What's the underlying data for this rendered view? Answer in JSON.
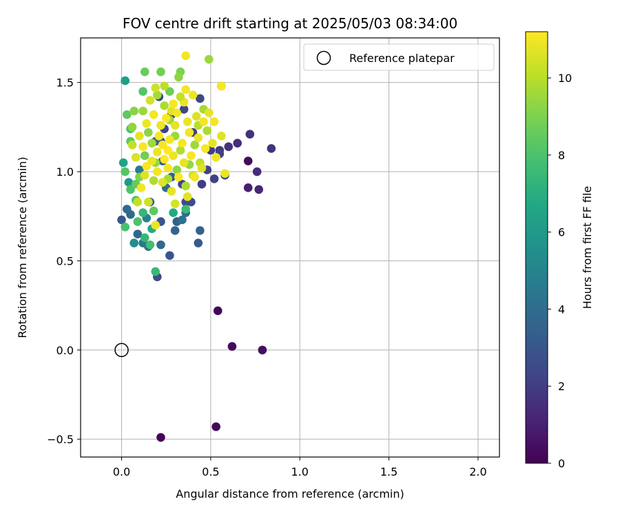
{
  "chart_data": {
    "type": "scatter",
    "title": "FOV centre drift starting at 2025/05/03 08:34:00",
    "xlabel": "Angular distance from reference (arcmin)",
    "ylabel": "Rotation from reference (arcmin)",
    "xlim": [
      -0.23,
      2.12
    ],
    "ylim": [
      -0.6,
      1.75
    ],
    "xticks": [
      0.0,
      0.5,
      1.0,
      1.5,
      2.0
    ],
    "xtick_labels": [
      "0.0",
      "0.5",
      "1.0",
      "1.5",
      "2.0"
    ],
    "yticks": [
      -0.5,
      0.0,
      0.5,
      1.0,
      1.5
    ],
    "ytick_labels": [
      "−0.5",
      "0.0",
      "0.5",
      "1.0",
      "1.5"
    ],
    "grid": true,
    "legend": {
      "position": "top-right",
      "entries": [
        "Reference platepar"
      ]
    },
    "reference_point": {
      "x": 0.0,
      "y": 0.0,
      "label": "Reference platepar"
    },
    "colorbar": {
      "label": "Hours from first FF file",
      "colormap": "viridis",
      "range": [
        0,
        11.2
      ],
      "ticks": [
        0,
        2,
        4,
        6,
        8,
        10
      ],
      "tick_labels": [
        "0",
        "2",
        "4",
        "6",
        "8",
        "10"
      ]
    },
    "series": [
      {
        "points": [
          [
            0.22,
            -0.49,
            0.1
          ],
          [
            0.53,
            -0.43,
            0.2
          ],
          [
            0.62,
            0.02,
            0.3
          ],
          [
            0.79,
            0.0,
            0.4
          ],
          [
            0.54,
            0.22,
            0.2
          ],
          [
            0.71,
            1.06,
            0.3
          ],
          [
            0.71,
            0.91,
            1.0
          ],
          [
            0.77,
            0.9,
            1.2
          ],
          [
            0.76,
            1.0,
            1.4
          ],
          [
            0.72,
            1.21,
            1.5
          ],
          [
            0.84,
            1.13,
            1.6
          ],
          [
            0.65,
            1.16,
            1.4
          ],
          [
            0.6,
            1.14,
            1.6
          ],
          [
            0.55,
            1.12,
            1.9
          ],
          [
            0.56,
            1.48,
            1.8
          ],
          [
            0.45,
            0.93,
            2.0
          ],
          [
            0.52,
            0.96,
            2.1
          ],
          [
            0.48,
            1.01,
            2.2
          ],
          [
            0.58,
            0.98,
            2.3
          ],
          [
            0.55,
            1.1,
            2.1
          ],
          [
            0.44,
            1.41,
            2.4
          ],
          [
            0.4,
            1.22,
            2.2
          ],
          [
            0.5,
            1.12,
            2.0
          ],
          [
            0.35,
            1.35,
            2.4
          ],
          [
            0.28,
            1.32,
            1.9
          ],
          [
            0.36,
            0.83,
            2.5
          ],
          [
            0.39,
            0.83,
            2.6
          ],
          [
            0.34,
            0.93,
            2.4
          ],
          [
            0.2,
            0.41,
            2.6
          ],
          [
            0.27,
            0.53,
            3.0
          ],
          [
            0.43,
            0.6,
            3.2
          ],
          [
            0.44,
            0.67,
            3.5
          ],
          [
            0.22,
            0.59,
            3.8
          ],
          [
            0.3,
            0.67,
            3.6
          ],
          [
            0.36,
            0.77,
            4.0
          ],
          [
            0.31,
            0.72,
            3.4
          ],
          [
            0.24,
            1.24,
            2.2
          ],
          [
            0.22,
            1.17,
            2.9
          ],
          [
            0.22,
            0.72,
            3.0
          ],
          [
            0.21,
            1.42,
            2.6
          ],
          [
            0.15,
            0.58,
            4.0
          ],
          [
            0.12,
            0.6,
            4.5
          ],
          [
            0.09,
            0.65,
            3.7
          ],
          [
            0.07,
            0.6,
            5.5
          ],
          [
            0.14,
            0.74,
            4.9
          ],
          [
            0.05,
            0.76,
            3.8
          ],
          [
            0.03,
            0.79,
            3.9
          ],
          [
            0.0,
            0.73,
            3.1
          ],
          [
            0.16,
            0.83,
            3.5
          ],
          [
            0.28,
            0.97,
            3.3
          ],
          [
            0.34,
            0.73,
            4.2
          ],
          [
            0.23,
            1.06,
            3.6
          ],
          [
            0.1,
            1.01,
            4.6
          ],
          [
            0.25,
            0.91,
            4.0
          ],
          [
            0.19,
            1.17,
            3.4
          ],
          [
            0.02,
            1.51,
            6.2
          ],
          [
            0.01,
            1.05,
            6.5
          ],
          [
            0.04,
            0.94,
            6.0
          ],
          [
            0.17,
            0.68,
            6.8
          ],
          [
            0.19,
            0.44,
            7.5
          ],
          [
            0.29,
            0.77,
            6.8
          ],
          [
            0.36,
            0.79,
            7.6
          ],
          [
            0.13,
            0.63,
            7.4
          ],
          [
            0.02,
            0.69,
            7.9
          ],
          [
            0.09,
            0.72,
            8.0
          ],
          [
            0.12,
            0.77,
            7.4
          ],
          [
            0.16,
            0.59,
            7.8
          ],
          [
            0.08,
            0.84,
            8.2
          ],
          [
            0.18,
            0.78,
            8.4
          ],
          [
            0.05,
            0.9,
            8.0
          ],
          [
            0.03,
            1.32,
            8.4
          ],
          [
            0.05,
            1.24,
            8.0
          ],
          [
            0.05,
            1.17,
            8.4
          ],
          [
            0.02,
            1.0,
            8.2
          ],
          [
            0.12,
            1.45,
            8.2
          ],
          [
            0.13,
            1.56,
            8.6
          ],
          [
            0.22,
            1.56,
            8.8
          ],
          [
            0.27,
            1.45,
            8.7
          ],
          [
            0.33,
            1.56,
            9.0
          ],
          [
            0.32,
            1.53,
            9.3
          ],
          [
            0.07,
            1.34,
            9.2
          ],
          [
            0.06,
            1.25,
            9.3
          ],
          [
            0.13,
            1.09,
            8.8
          ],
          [
            0.1,
            0.97,
            9.0
          ],
          [
            0.08,
            0.93,
            8.5
          ],
          [
            0.12,
            1.34,
            9.5
          ],
          [
            0.15,
            1.22,
            9.2
          ],
          [
            0.17,
            1.16,
            9.6
          ],
          [
            0.19,
            1.05,
            9.4
          ],
          [
            0.18,
            0.95,
            9.8
          ],
          [
            0.2,
            1.43,
            9.7
          ],
          [
            0.24,
            1.37,
            9.8
          ],
          [
            0.27,
            1.29,
            9.6
          ],
          [
            0.3,
            1.2,
            9.5
          ],
          [
            0.33,
            1.12,
            9.9
          ],
          [
            0.31,
            1.01,
            9.3
          ],
          [
            0.26,
            0.96,
            9.7
          ],
          [
            0.36,
            0.92,
            9.8
          ],
          [
            0.38,
            1.04,
            9.4
          ],
          [
            0.41,
            1.15,
            9.6
          ],
          [
            0.43,
            1.26,
            10.0
          ],
          [
            0.46,
            1.35,
            9.7
          ],
          [
            0.48,
            1.23,
            9.8
          ],
          [
            0.44,
            1.05,
            10.1
          ],
          [
            0.4,
            0.98,
            10.3
          ],
          [
            0.49,
            1.63,
            9.5
          ],
          [
            0.36,
            1.65,
            11.0
          ],
          [
            0.56,
            1.48,
            11.1
          ],
          [
            0.36,
            1.46,
            11.0
          ],
          [
            0.4,
            1.43,
            10.9
          ],
          [
            0.52,
            1.28,
            11.0
          ],
          [
            0.56,
            1.2,
            10.7
          ],
          [
            0.51,
            1.16,
            10.8
          ],
          [
            0.47,
            1.13,
            11.1
          ],
          [
            0.53,
            1.08,
            10.9
          ],
          [
            0.58,
            0.99,
            10.9
          ],
          [
            0.45,
            1.02,
            10.6
          ],
          [
            0.41,
            0.97,
            11.0
          ],
          [
            0.37,
            0.86,
            10.7
          ],
          [
            0.3,
            0.82,
            10.5
          ],
          [
            0.28,
            0.89,
            10.8
          ],
          [
            0.19,
            0.7,
            10.9
          ],
          [
            0.15,
            0.83,
            10.4
          ],
          [
            0.09,
            0.83,
            10.2
          ],
          [
            0.11,
            0.91,
            11.0
          ],
          [
            0.14,
            1.03,
            11.1
          ],
          [
            0.2,
            1.11,
            10.9
          ],
          [
            0.24,
            1.07,
            11.2
          ],
          [
            0.27,
            1.18,
            11.0
          ],
          [
            0.3,
            1.26,
            10.8
          ],
          [
            0.34,
            1.16,
            11.1
          ],
          [
            0.38,
            1.22,
            11.0
          ],
          [
            0.42,
            1.31,
            10.6
          ],
          [
            0.35,
            1.39,
            10.9
          ],
          [
            0.28,
            1.34,
            10.7
          ],
          [
            0.22,
            1.26,
            10.9
          ],
          [
            0.18,
            1.32,
            11.0
          ],
          [
            0.16,
            1.4,
            10.5
          ],
          [
            0.19,
            1.47,
            10.4
          ],
          [
            0.24,
            1.48,
            10.1
          ],
          [
            0.06,
            1.15,
            10.2
          ],
          [
            0.08,
            1.08,
            10.6
          ],
          [
            0.1,
            1.2,
            10.8
          ],
          [
            0.12,
            1.14,
            11.1
          ],
          [
            0.14,
            1.27,
            10.9
          ],
          [
            0.2,
            1.0,
            11.0
          ],
          [
            0.23,
            0.94,
            10.7
          ],
          [
            0.26,
            1.02,
            11.1
          ],
          [
            0.29,
            1.09,
            10.9
          ],
          [
            0.32,
            0.97,
            11.2
          ],
          [
            0.35,
            1.05,
            10.8
          ],
          [
            0.39,
            1.09,
            11.1
          ],
          [
            0.43,
            1.19,
            10.9
          ],
          [
            0.46,
            1.28,
            11.0
          ],
          [
            0.49,
            1.33,
            10.8
          ],
          [
            0.25,
            1.3,
            11.2
          ],
          [
            0.21,
            1.2,
            11.1
          ],
          [
            0.17,
            1.06,
            10.9
          ],
          [
            0.13,
            0.98,
            10.6
          ],
          [
            0.31,
            1.33,
            11.0
          ],
          [
            0.37,
            1.28,
            10.9
          ],
          [
            0.33,
            1.42,
            10.2
          ],
          [
            0.29,
            1.38,
            11.1
          ],
          [
            0.26,
            1.12,
            11.2
          ],
          [
            0.23,
            1.15,
            11.1
          ]
        ]
      }
    ]
  }
}
